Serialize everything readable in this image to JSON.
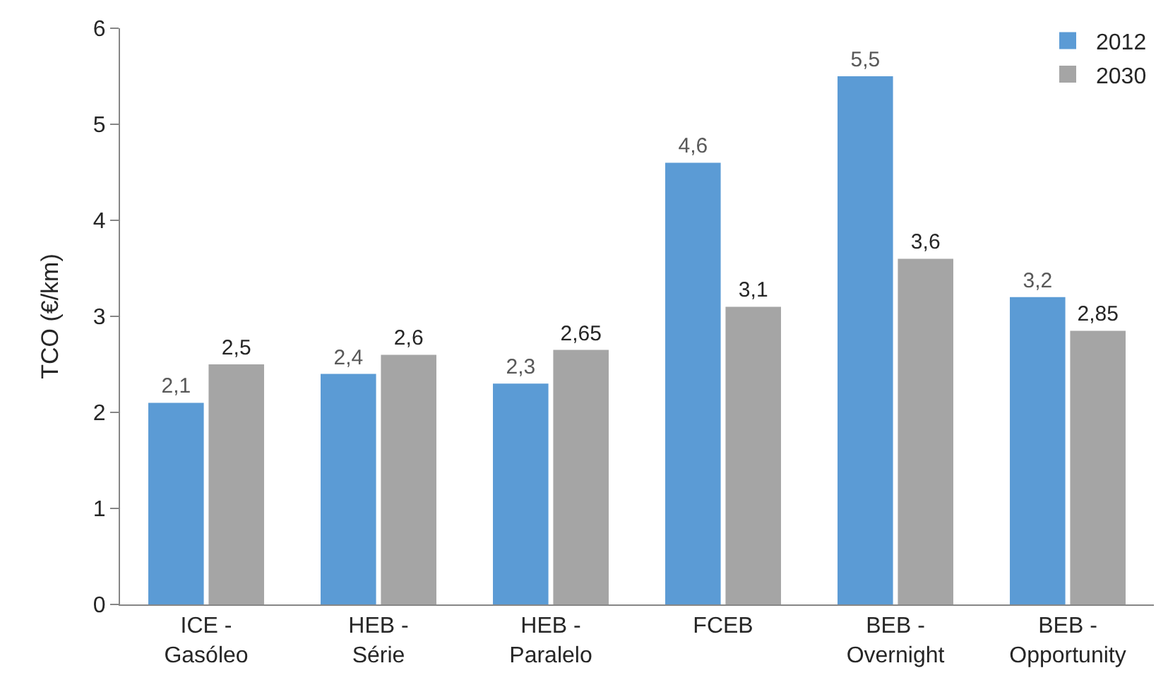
{
  "chart_data": {
    "type": "bar",
    "ylabel": "TCO (€/km)",
    "categories": [
      "ICE - Gasóleo",
      "HEB - Série",
      "HEB - Paralelo",
      "FCEB",
      "BEB - Overnight",
      "BEB - Opportunity"
    ],
    "series": [
      {
        "name": "2012",
        "color": "#5b9bd5",
        "values": [
          2.1,
          2.4,
          2.3,
          4.6,
          5.5,
          3.2
        ],
        "value_labels": [
          "2,1",
          "2,4",
          "2,3",
          "4,6",
          "5,5",
          "3,2"
        ]
      },
      {
        "name": "2030",
        "color": "#a5a5a5",
        "values": [
          2.5,
          2.6,
          2.65,
          3.1,
          3.6,
          2.85
        ],
        "value_labels": [
          "2,5",
          "2,6",
          "2,65",
          "3,1",
          "3,6",
          "2,85"
        ]
      }
    ],
    "ylim": [
      0,
      6
    ],
    "yticks": [
      0,
      1,
      2,
      3,
      4,
      5,
      6
    ],
    "grid": false,
    "legend": "top right"
  }
}
